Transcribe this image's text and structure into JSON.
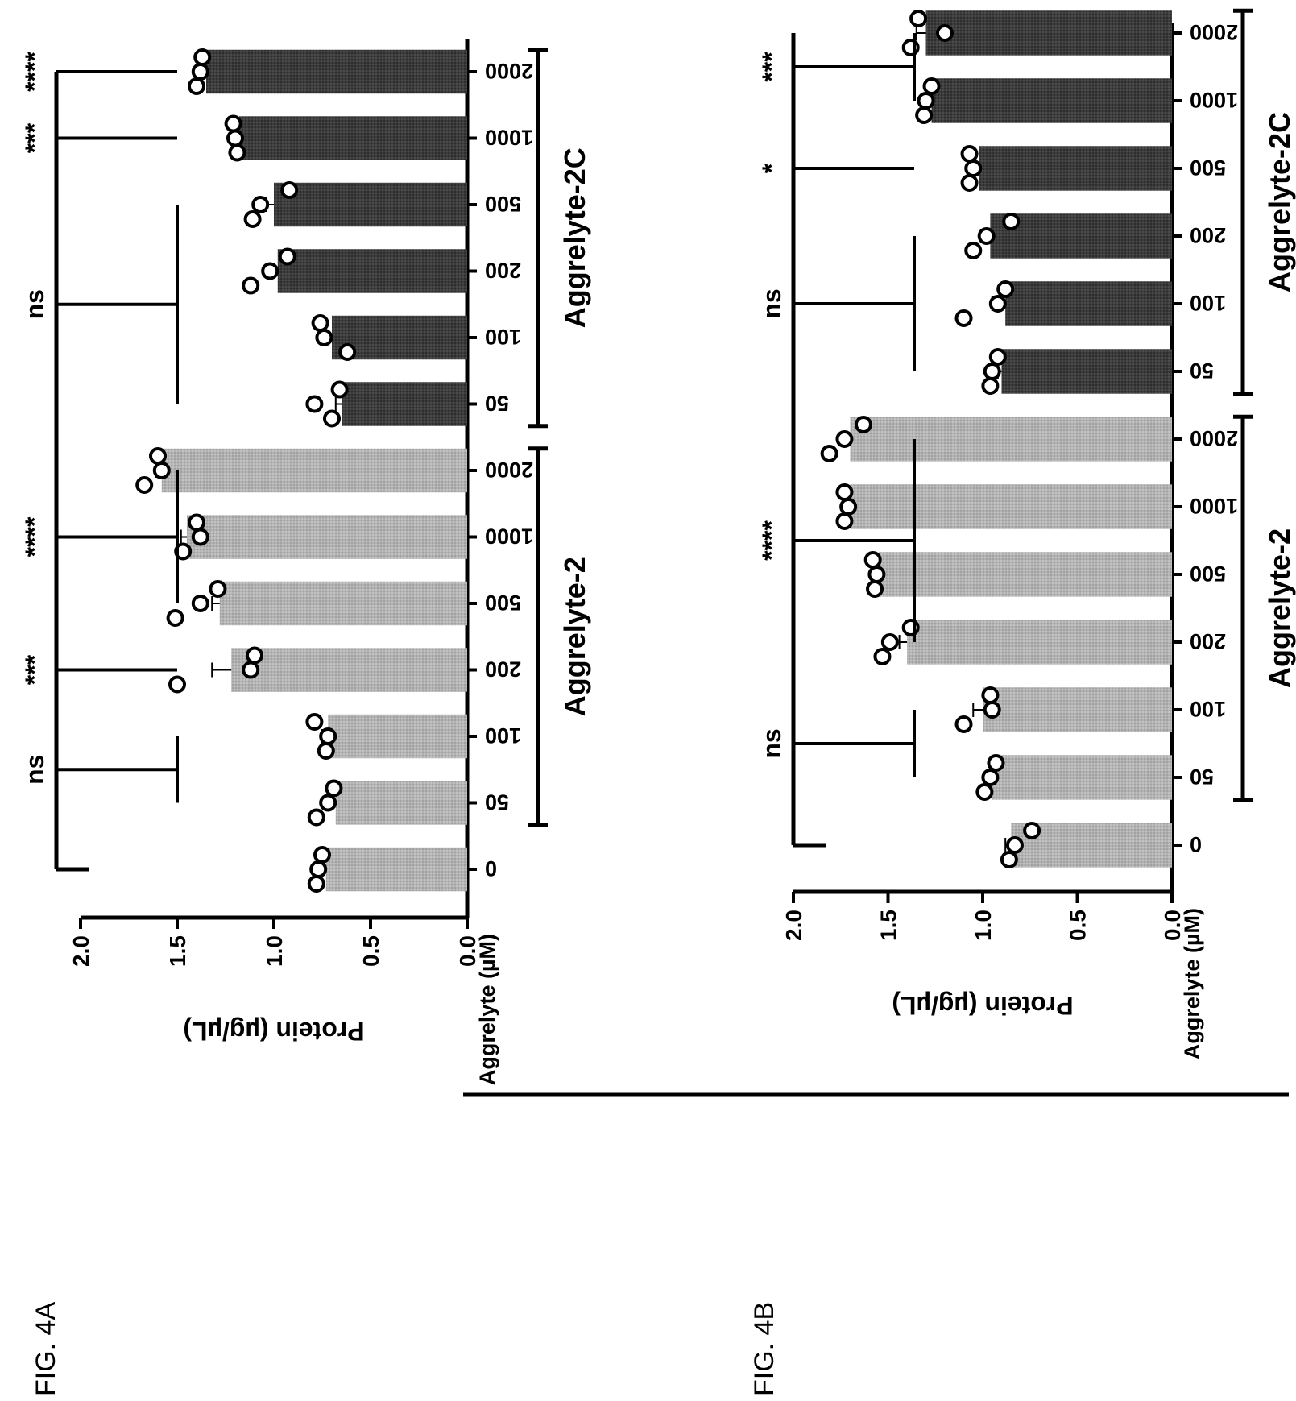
{
  "chart_data": [
    {
      "type": "bar",
      "figure_label": "FIG. 4A",
      "ylabel": "Protein (µg/µL)",
      "xlabel": "Aggrelyte (µM)",
      "ylim": [
        0,
        2.0
      ],
      "yticks": [
        "2.0",
        "1.5",
        "1.0",
        "0.5",
        "0.0"
      ],
      "categories": [
        "0",
        "50",
        "100",
        "200",
        "500",
        "1000",
        "2000",
        "50",
        "100",
        "200",
        "500",
        "1000",
        "2000"
      ],
      "values": [
        0.73,
        0.68,
        0.72,
        1.22,
        1.28,
        1.45,
        1.58,
        0.65,
        0.7,
        0.98,
        1.0,
        1.18,
        1.35
      ],
      "points": [
        [
          0.78,
          0.77,
          0.75
        ],
        [
          0.78,
          0.72,
          0.69
        ],
        [
          0.73,
          0.72,
          0.79
        ],
        [
          1.5,
          1.12,
          1.1
        ],
        [
          1.51,
          1.38,
          1.29
        ],
        [
          1.47,
          1.38,
          1.4
        ],
        [
          1.67,
          1.58,
          1.6
        ],
        [
          0.7,
          0.79,
          0.66
        ],
        [
          0.62,
          0.74,
          0.76
        ],
        [
          1.12,
          1.02,
          0.93
        ],
        [
          1.11,
          1.07,
          0.92
        ],
        [
          1.19,
          1.2,
          1.21
        ],
        [
          1.4,
          1.38,
          1.37
        ]
      ],
      "errors": [
        0.0,
        0.03,
        0.03,
        0.1,
        0.04,
        0.03,
        0.03,
        0.03,
        0.04,
        0.03,
        0.04,
        0.01,
        0.01
      ],
      "bar_colors": [
        "#b3b3b3",
        "#b3b3b3",
        "#b3b3b3",
        "#b3b3b3",
        "#b3b3b3",
        "#b3b3b3",
        "#b3b3b3",
        "#3c3c3c",
        "#3c3c3c",
        "#3c3c3c",
        "#3c3c3c",
        "#3c3c3c",
        "#3c3c3c"
      ],
      "groups": [
        {
          "label": "Aggrelyte-2",
          "from": 1,
          "to": 6
        },
        {
          "label": "Aggrelyte-2C",
          "from": 7,
          "to": 12
        }
      ],
      "annotations": [
        "ns",
        "***",
        "****",
        "ns",
        "***",
        "****"
      ]
    },
    {
      "type": "bar",
      "figure_label": "FIG. 4B",
      "ylabel": "Protein (µg/µL)",
      "xlabel": "Aggrelyte (µM)",
      "ylim": [
        0,
        2.0
      ],
      "yticks": [
        "2.0",
        "1.5",
        "1.0",
        "0.5",
        "0.0"
      ],
      "categories": [
        "0",
        "50",
        "100",
        "200",
        "500",
        "1000",
        "2000",
        "50",
        "100",
        "200",
        "500",
        "1000",
        "2000"
      ],
      "values": [
        0.85,
        0.95,
        1.0,
        1.4,
        1.55,
        1.7,
        1.7,
        0.9,
        0.88,
        0.96,
        1.02,
        1.27,
        1.3
      ],
      "points": [
        [
          0.86,
          0.83,
          0.74
        ],
        [
          0.99,
          0.96,
          0.93
        ],
        [
          1.1,
          0.95,
          0.96
        ],
        [
          1.53,
          1.49,
          1.38
        ],
        [
          1.57,
          1.56,
          1.58
        ],
        [
          1.73,
          1.71,
          1.73
        ],
        [
          1.81,
          1.73,
          1.63
        ],
        [
          0.96,
          0.95,
          0.92
        ],
        [
          1.1,
          0.92,
          0.88
        ],
        [
          1.05,
          0.98,
          0.85
        ],
        [
          1.07,
          1.05,
          1.07
        ],
        [
          1.31,
          1.3,
          1.27
        ],
        [
          1.38,
          1.2,
          1.34
        ]
      ],
      "errors": [
        0.03,
        0.03,
        0.05,
        0.04,
        0.01,
        0.01,
        0.05,
        0.02,
        0.07,
        0.05,
        0.01,
        0.02,
        0.05
      ],
      "bar_colors": [
        "#b3b3b3",
        "#b3b3b3",
        "#b3b3b3",
        "#b3b3b3",
        "#b3b3b3",
        "#b3b3b3",
        "#b3b3b3",
        "#3c3c3c",
        "#3c3c3c",
        "#3c3c3c",
        "#3c3c3c",
        "#3c3c3c",
        "#3c3c3c"
      ],
      "groups": [
        {
          "label": "Aggrelyte-2",
          "from": 1,
          "to": 6
        },
        {
          "label": "Aggrelyte-2C",
          "from": 7,
          "to": 12
        }
      ],
      "annotations": [
        "ns",
        "****",
        "ns",
        "*",
        "***"
      ]
    }
  ]
}
